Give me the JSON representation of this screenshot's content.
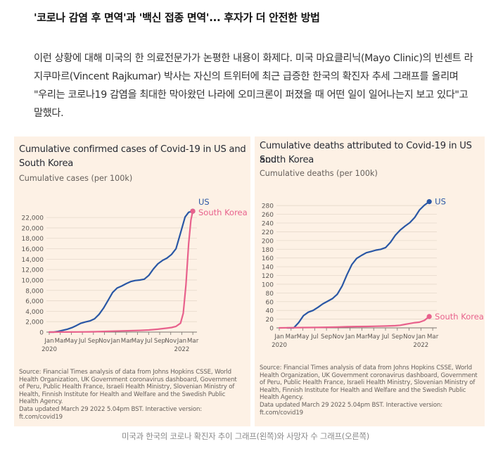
{
  "article": {
    "headline": "'코로나 감염 후 면역'과 '백신 접종 면역'... 후자가 더 안전한 방법",
    "paragraph": "이런 상황에 대해 미국의 한 의료전문가가 논평한 내용이 화제다. 미국 마요클리닉(Mayo Clinic)의 빈센트 라지쿠마르(Vincent Rajkumar) 박사는 자신의 트위터에 최근 급증한 한국의 확진자 추세 그래프를 올리며 \"우리는 코로나19 감염을 최대한 막아왔던 나라에 오미크론이 퍼졌을 때 어떤 일이 일어나는지 보고 있다\"고 말했다.",
    "caption": "미국과 한국의 코로나 확진자 추이 그래프(왼쪽)와 사망자 수 그래프(오른쪽)"
  },
  "colors": {
    "us": "#2a57a5",
    "south_korea": "#e8618c",
    "panel_bg": "#fdf1e5",
    "axis": "#8a8580",
    "text": "#262a33"
  },
  "chart_data": [
    {
      "type": "line",
      "title": "Cumulative confirmed cases of Covid-19 in US and South Korea",
      "subtitle": "Cumulative cases (per 100k)",
      "x_ticks": [
        "Jan",
        "Mar",
        "May",
        "Jul",
        "Sep",
        "Nov",
        "Jan",
        "Mar",
        "May",
        "Jul",
        "Sep",
        "Nov",
        "Jan",
        "Mar"
      ],
      "x_year_labels": [
        {
          "tick_index": 0,
          "label": "2020"
        },
        {
          "tick_index": 12,
          "label": "2022"
        }
      ],
      "y_ticks": [
        0,
        2000,
        4000,
        6000,
        8000,
        10000,
        12000,
        14000,
        16000,
        18000,
        20000,
        22000
      ],
      "y_tick_labels": [
        "0",
        "2,000",
        "4,000",
        "6,000",
        "8,000",
        "10,000",
        "12,000",
        "14,000",
        "16,000",
        "18,000",
        "20,000",
        "22,000"
      ],
      "ylim": [
        0,
        23500
      ],
      "series": [
        {
          "name": "US",
          "color_key": "us",
          "points": [
            [
              0,
              0
            ],
            [
              1,
              2
            ],
            [
              2,
              150
            ],
            [
              3,
              350
            ],
            [
              4,
              550
            ],
            [
              5,
              850
            ],
            [
              6,
              1250
            ],
            [
              7,
              1700
            ],
            [
              8,
              1950
            ],
            [
              9,
              2150
            ],
            [
              10,
              2550
            ],
            [
              11,
              3400
            ],
            [
              12,
              4600
            ],
            [
              13,
              6100
            ],
            [
              14,
              7600
            ],
            [
              15,
              8450
            ],
            [
              16,
              8850
            ],
            [
              17,
              9300
            ],
            [
              18,
              9700
            ],
            [
              19,
              9900
            ],
            [
              20,
              10000
            ],
            [
              21,
              10150
            ],
            [
              22,
              10900
            ],
            [
              23,
              12100
            ],
            [
              24,
              13100
            ],
            [
              25,
              13750
            ],
            [
              26,
              14200
            ],
            [
              27,
              14900
            ],
            [
              28,
              16000
            ],
            [
              29,
              19000
            ],
            [
              30,
              22100
            ],
            [
              30.8,
              23000
            ],
            [
              31.7,
              23200
            ]
          ]
        },
        {
          "name": "South Korea",
          "color_key": "south_korea",
          "points": [
            [
              0,
              0
            ],
            [
              1,
              0
            ],
            [
              2,
              10
            ],
            [
              4,
              20
            ],
            [
              6,
              30
            ],
            [
              8,
              45
            ],
            [
              10,
              70
            ],
            [
              12,
              120
            ],
            [
              14,
              180
            ],
            [
              16,
              230
            ],
            [
              18,
              270
            ],
            [
              20,
              320
            ],
            [
              22,
              400
            ],
            [
              24,
              550
            ],
            [
              26,
              760
            ],
            [
              27,
              880
            ],
            [
              28,
              1100
            ],
            [
              29,
              1700
            ],
            [
              29.6,
              3600
            ],
            [
              30.2,
              9000
            ],
            [
              30.8,
              17000
            ],
            [
              31.3,
              21500
            ],
            [
              31.7,
              23200
            ]
          ]
        }
      ]
    },
    {
      "type": "line",
      "title": "Cumulative deaths attributed to Covid-19 in US and South Korea",
      "subtitle": "Cumulative deaths (per 100k)",
      "x_ticks": [
        "Jan",
        "Mar",
        "May",
        "Jul",
        "Sep",
        "Nov",
        "Jan",
        "Mar",
        "May",
        "Jul",
        "Sep",
        "Nov",
        "Jan",
        "Mar"
      ],
      "x_year_labels": [
        {
          "tick_index": 0,
          "label": "2020"
        },
        {
          "tick_index": 12,
          "label": "2022"
        }
      ],
      "y_ticks": [
        0,
        20,
        40,
        60,
        80,
        100,
        120,
        140,
        160,
        180,
        200,
        220,
        240,
        260,
        280
      ],
      "y_tick_labels": [
        "0",
        "20",
        "40",
        "60",
        "80",
        "100",
        "120",
        "140",
        "160",
        "180",
        "200",
        "220",
        "240",
        "260",
        "280"
      ],
      "ylim": [
        0,
        290
      ],
      "series": [
        {
          "name": "US",
          "color_key": "us",
          "points": [
            [
              1.6,
              0
            ],
            [
              3,
              0
            ],
            [
              4,
              12
            ],
            [
              5,
              28
            ],
            [
              6,
              36
            ],
            [
              7,
              40
            ],
            [
              8,
              47
            ],
            [
              9,
              55
            ],
            [
              10,
              61
            ],
            [
              11,
              67
            ],
            [
              12,
              77
            ],
            [
              13,
              96
            ],
            [
              14,
              122
            ],
            [
              15,
              145
            ],
            [
              16,
              159
            ],
            [
              17,
              166
            ],
            [
              18,
              172
            ],
            [
              19,
              175
            ],
            [
              20,
              178
            ],
            [
              21,
              180
            ],
            [
              22,
              184
            ],
            [
              23,
              196
            ],
            [
              24,
              212
            ],
            [
              25,
              224
            ],
            [
              26,
              233
            ],
            [
              27,
              241
            ],
            [
              28,
              253
            ],
            [
              29,
              270
            ],
            [
              30,
              281
            ],
            [
              31,
              289
            ]
          ]
        },
        {
          "name": "South Korea",
          "color_key": "south_korea",
          "points": [
            [
              0,
              0
            ],
            [
              2,
              0.4
            ],
            [
              4,
              0.6
            ],
            [
              6,
              0.8
            ],
            [
              8,
              1
            ],
            [
              10,
              1.5
            ],
            [
              12,
              2
            ],
            [
              14,
              2.5
            ],
            [
              16,
              3
            ],
            [
              18,
              3.3
            ],
            [
              20,
              3.7
            ],
            [
              22,
              4.2
            ],
            [
              24,
              5
            ],
            [
              25,
              6
            ],
            [
              26,
              8
            ],
            [
              27,
              10
            ],
            [
              28,
              12
            ],
            [
              29,
              13
            ],
            [
              30,
              17
            ],
            [
              31,
              26
            ]
          ]
        }
      ]
    }
  ],
  "chart_text": {
    "left": {
      "title_line1": "Cumulative confirmed cases of Covid-19 in US and",
      "title_line2": "South Korea",
      "subtitle": "Cumulative cases (per 100k)",
      "source_lines": [
        "Source: Financial Times analysis of data from Johns Hopkins CSSE, World",
        "Health Organization, UK Government coronavirus dashboard, Government",
        "of Peru, Public Health France, Israeli Health Ministry, Slovenian Ministry of",
        "Health, Finnish Institute for Health and Welfare and the Swedish Public",
        "Health Agency.",
        "Data updated March 29 2022 5.04pm BST. Interactive version:",
        "ft.com/covid19"
      ]
    },
    "right": {
      "title_line1": "Cumulative deaths attributed to Covid-19 in US and",
      "title_line2": "South Korea",
      "subtitle": "Cumulative deaths (per 100k)",
      "source_lines": [
        "Source: Financial Times analysis of data from Johns Hopkins CSSE, World",
        "Health Organization, UK Government coronavirus dashboard, Government",
        "of Peru, Public Health France, Israeli Health Ministry, Slovenian Ministry of",
        "Health, Finnish Institute for Health and Welfare and the Swedish Public",
        "Health Agency.",
        "Data updated March 29 2022 5.04pm BST. Interactive version:",
        "ft.com/covid19"
      ]
    }
  }
}
